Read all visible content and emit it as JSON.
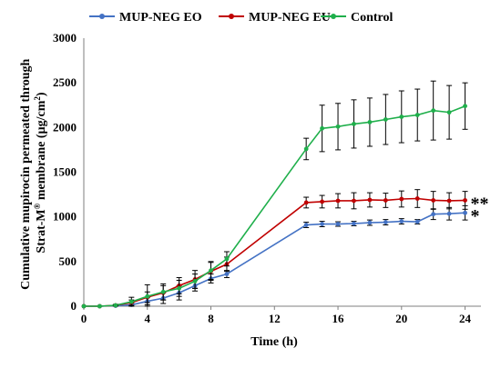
{
  "chart_data": {
    "type": "line",
    "xlabel": "Time (h)",
    "ylabel_line1": "Cumulative mupirocin permeated through",
    "ylabel_line2_pre": "Strat-M",
    "ylabel_line2_sup": "®",
    "ylabel_line2_post": " membrane (µg/cm",
    "ylabel_line2_sup2": "2",
    "ylabel_line2_end": ")",
    "xlim": [
      0,
      25
    ],
    "ylim": [
      0,
      3000
    ],
    "xticks": [
      0,
      4,
      8,
      12,
      16,
      20,
      24
    ],
    "yticks": [
      0,
      500,
      1000,
      1500,
      2000,
      2500,
      3000
    ],
    "grid": false,
    "legend_position": "top",
    "series": [
      {
        "name": "MUP-NEG EO",
        "color": "#4472C4",
        "x": [
          0,
          1,
          2,
          3,
          4,
          5,
          6,
          7,
          8,
          9,
          14,
          15,
          16,
          17,
          18,
          19,
          20,
          21,
          22,
          23,
          24
        ],
        "y": [
          0,
          0,
          5,
          15,
          55,
          90,
          150,
          230,
          310,
          360,
          910,
          920,
          920,
          925,
          935,
          940,
          950,
          945,
          1030,
          1035,
          1045
        ],
        "err": [
          0,
          0,
          5,
          20,
          40,
          60,
          80,
          60,
          50,
          40,
          30,
          30,
          25,
          25,
          30,
          30,
          30,
          25,
          60,
          70,
          80
        ]
      },
      {
        "name": "MUP-NEG EU",
        "color": "#C00000",
        "x": [
          0,
          1,
          2,
          3,
          4,
          5,
          6,
          7,
          8,
          9,
          14,
          15,
          16,
          17,
          18,
          19,
          20,
          21,
          22,
          23,
          24
        ],
        "y": [
          0,
          0,
          10,
          40,
          100,
          150,
          230,
          300,
          390,
          470,
          1160,
          1170,
          1180,
          1180,
          1190,
          1185,
          1200,
          1205,
          1185,
          1180,
          1185
        ],
        "err": [
          0,
          0,
          5,
          30,
          60,
          80,
          90,
          100,
          100,
          80,
          60,
          70,
          80,
          90,
          80,
          80,
          90,
          100,
          100,
          90,
          100
        ]
      },
      {
        "name": "Control",
        "color": "#1FAF4B",
        "x": [
          0,
          1,
          2,
          3,
          4,
          5,
          6,
          7,
          8,
          9,
          14,
          15,
          16,
          17,
          18,
          19,
          20,
          21,
          22,
          23,
          24
        ],
        "y": [
          0,
          0,
          10,
          50,
          110,
          160,
          200,
          280,
          400,
          530,
          1760,
          1990,
          2010,
          2040,
          2060,
          2090,
          2120,
          2140,
          2190,
          2170,
          2240
        ],
        "err": [
          0,
          0,
          10,
          50,
          130,
          90,
          90,
          80,
          100,
          80,
          120,
          260,
          260,
          270,
          270,
          280,
          290,
          290,
          330,
          300,
          260
        ]
      }
    ],
    "annotations": [
      {
        "text": "**",
        "series": "MUP-NEG EU"
      },
      {
        "text": "*",
        "series": "MUP-NEG EO"
      }
    ]
  }
}
